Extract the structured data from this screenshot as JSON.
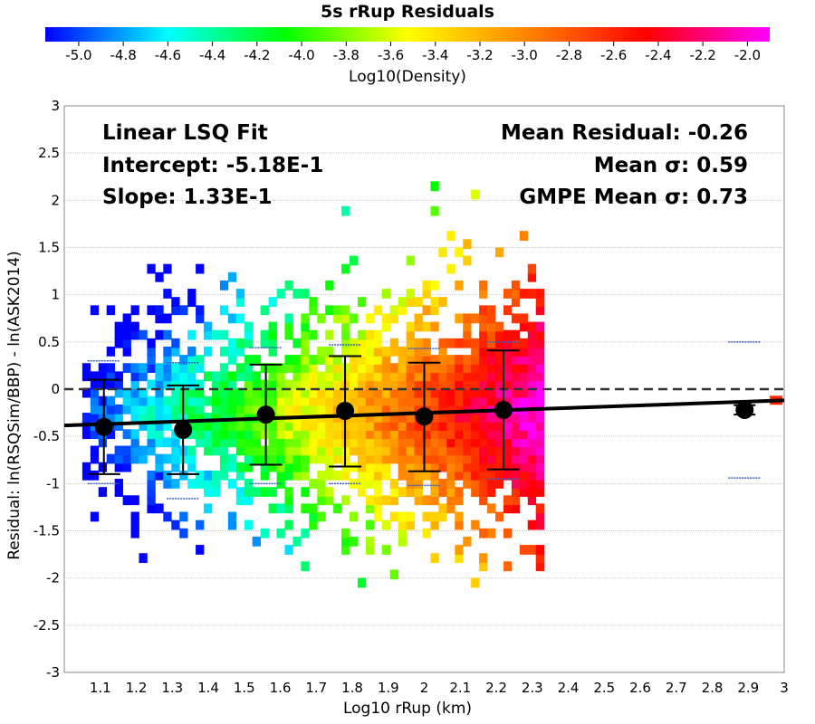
{
  "chart_data": {
    "type": "heatmap",
    "title": "5s rRup Residuals",
    "xlabel": "Log10 rRup (km)",
    "ylabel": "Residual: ln(RSQSim/BBP) - ln(ASK2014)",
    "xlim": [
      1.0,
      3.0
    ],
    "ylim": [
      -3.0,
      3.0
    ],
    "x_ticks": [
      "1.1",
      "1.2",
      "1.3",
      "1.4",
      "1.5",
      "1.6",
      "1.7",
      "1.8",
      "1.9",
      "2",
      "2.1",
      "2.2",
      "2.3",
      "2.4",
      "2.5",
      "2.6",
      "2.7",
      "2.8",
      "2.9",
      "3"
    ],
    "y_ticks": [
      "-3",
      "-2.5",
      "-2",
      "-1.5",
      "-1",
      "-0.5",
      "0",
      "0.5",
      "1",
      "1.5",
      "2",
      "2.5",
      "3"
    ],
    "grid": "horizontal",
    "colorbar": {
      "label": "Log10(Density)",
      "range": [
        -5.15,
        -1.9
      ],
      "ticks": [
        "-5.0",
        "-4.8",
        "-4.6",
        "-4.4",
        "-4.2",
        "-4.0",
        "-3.8",
        "-3.6",
        "-3.4",
        "-3.2",
        "-3.0",
        "-2.8",
        "-2.6",
        "-2.4",
        "-2.2",
        "-2.0"
      ]
    },
    "fit_line": {
      "x": [
        1.0,
        3.0
      ],
      "y": [
        -0.385,
        -0.119
      ]
    },
    "zero_line": 0,
    "binned_means": [
      {
        "x": 1.11,
        "mean": -0.4,
        "low": -0.9,
        "high": 0.1
      },
      {
        "x": 1.33,
        "mean": -0.43,
        "low": -0.9,
        "high": 0.04
      },
      {
        "x": 1.56,
        "mean": -0.27,
        "low": -0.8,
        "high": 0.26
      },
      {
        "x": 1.78,
        "mean": -0.23,
        "low": -0.82,
        "high": 0.35
      },
      {
        "x": 2.0,
        "mean": -0.29,
        "low": -0.87,
        "high": 0.28
      },
      {
        "x": 2.22,
        "mean": -0.22,
        "low": -0.85,
        "high": 0.41
      },
      {
        "x": 2.89,
        "mean": -0.22,
        "low": -0.27,
        "high": -0.17
      }
    ],
    "gmpe_sigma_marks": [
      {
        "x": 1.11,
        "low": -1.0,
        "high": 0.3
      },
      {
        "x": 1.33,
        "low": -1.16,
        "high": 0.28
      },
      {
        "x": 1.56,
        "low": -1.0,
        "high": 0.44
      },
      {
        "x": 1.78,
        "low": -1.0,
        "high": 0.47
      },
      {
        "x": 2.0,
        "low": -1.02,
        "high": 0.43
      },
      {
        "x": 2.22,
        "low": -0.95,
        "high": 0.5
      },
      {
        "x": 2.89,
        "low": -0.94,
        "high": 0.5
      }
    ],
    "annotations": {
      "fit_title": "Linear LSQ Fit",
      "intercept": "Intercept: -5.18E-1",
      "slope": "Slope: 1.33E-1",
      "mean_residual": "Mean Residual: -0.26",
      "mean_sigma": "Mean σ: 0.59",
      "gmpe_sigma": "GMPE Mean σ: 0.73"
    }
  }
}
